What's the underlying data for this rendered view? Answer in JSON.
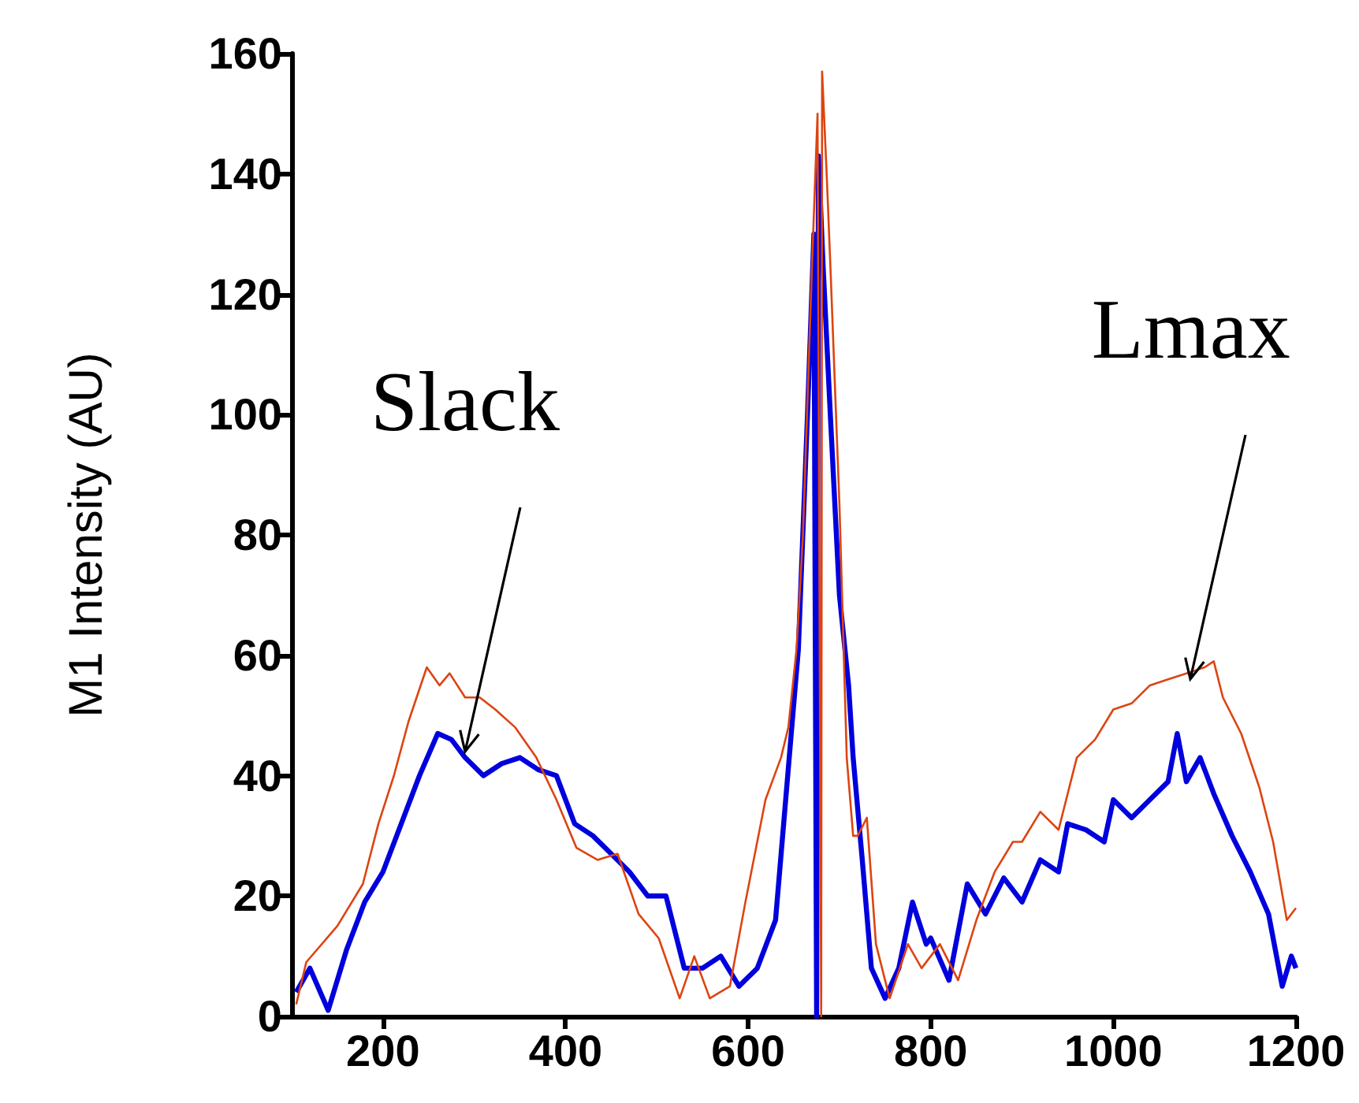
{
  "chart_data": {
    "type": "line",
    "ylabel": "M1 Intensity (AU)",
    "xlim": [
      100,
      1200
    ],
    "xticks": [
      200,
      400,
      600,
      800,
      1000,
      1200
    ],
    "ylim": [
      0,
      160
    ],
    "yticks": [
      0,
      20,
      40,
      60,
      80,
      100,
      120,
      140,
      160
    ],
    "grid": false,
    "marker": "none",
    "line_style": "solid",
    "annotations": [
      {
        "text": "Slack",
        "x": 290,
        "y": 44
      },
      {
        "text": "Lmax",
        "x": 1085,
        "y": 56
      }
    ],
    "series": [
      {
        "color": "#dd4411",
        "x": [
          105,
          116,
          150,
          178,
          195,
          212,
          228,
          248,
          262,
          273,
          290,
          306,
          323,
          345,
          368,
          390,
          412,
          435,
          457,
          480,
          502,
          525,
          541,
          558,
          580,
          597,
          619,
          636,
          644,
          653,
          660,
          670,
          676,
          680,
          681,
          686,
          690,
          700,
          708,
          715,
          720,
          730,
          740,
          755,
          775,
          790,
          810,
          830,
          850,
          870,
          890,
          900,
          920,
          940,
          960,
          980,
          1000,
          1020,
          1040,
          1060,
          1080,
          1100,
          1110,
          1120,
          1140,
          1160,
          1175,
          1190,
          1200
        ],
        "values": [
          2,
          9,
          15,
          22,
          32,
          40,
          49,
          58,
          55,
          57,
          53,
          53,
          51,
          48,
          43,
          36,
          28,
          26,
          27,
          17,
          13,
          3,
          10,
          3,
          5,
          19,
          36,
          43,
          48,
          61,
          80,
          125,
          150,
          0,
          157,
          140,
          125,
          85,
          43,
          30,
          30,
          33,
          12,
          3,
          12,
          8,
          12,
          6,
          16,
          24,
          29,
          29,
          34,
          31,
          43,
          46,
          51,
          52,
          55,
          56,
          57,
          58,
          59,
          53,
          47,
          38,
          29,
          16,
          18
        ]
      },
      {
        "color": "#0000dd",
        "x": [
          105,
          120,
          140,
          160,
          180,
          200,
          220,
          240,
          260,
          275,
          290,
          310,
          330,
          350,
          370,
          390,
          410,
          430,
          450,
          470,
          490,
          510,
          530,
          550,
          570,
          590,
          610,
          630,
          645,
          655,
          665,
          672,
          675,
          677,
          682,
          690,
          700,
          710,
          715,
          725,
          735,
          750,
          765,
          780,
          795,
          800,
          820,
          840,
          860,
          880,
          900,
          920,
          940,
          950,
          970,
          990,
          1000,
          1020,
          1040,
          1060,
          1070,
          1080,
          1095,
          1110,
          1130,
          1150,
          1170,
          1185,
          1195,
          1200
        ],
        "values": [
          4,
          8,
          1,
          11,
          19,
          24,
          32,
          40,
          47,
          46,
          43,
          40,
          42,
          43,
          41,
          40,
          32,
          30,
          27,
          24,
          20,
          20,
          8,
          8,
          10,
          5,
          8,
          16,
          43,
          61,
          100,
          130,
          0,
          143,
          125,
          100,
          70,
          55,
          43,
          26,
          8,
          3,
          8,
          19,
          12,
          13,
          6,
          22,
          17,
          23,
          19,
          26,
          24,
          32,
          31,
          29,
          36,
          33,
          36,
          39,
          47,
          39,
          43,
          37,
          30,
          24,
          17,
          5,
          10,
          8
        ]
      }
    ]
  }
}
